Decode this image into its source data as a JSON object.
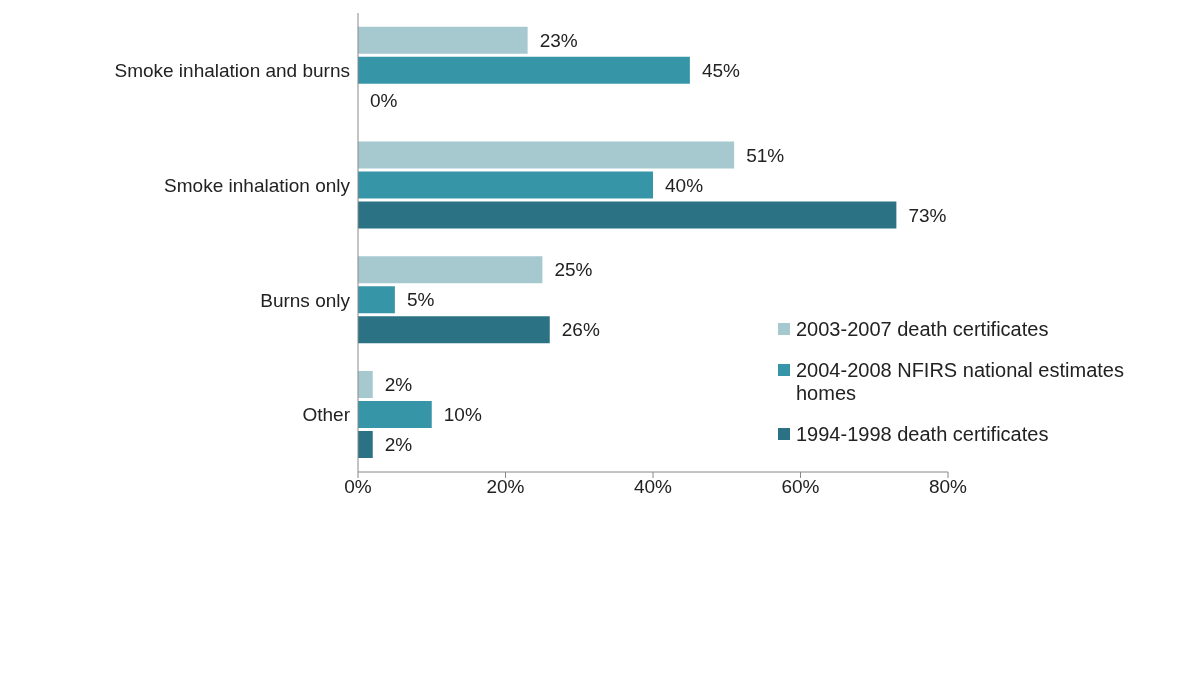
{
  "chart_data": {
    "type": "bar",
    "orientation": "horizontal",
    "categories": [
      "Smoke inhalation and burns",
      "Smoke inhalation only",
      "Burns only",
      "Other"
    ],
    "series": [
      {
        "name": "2003-2007 death certificates",
        "color": "#a6c8cf",
        "values": [
          23,
          51,
          25,
          2
        ],
        "value_labels": [
          "23%",
          "51%",
          "25%",
          "2%"
        ]
      },
      {
        "name": "2004-2008 NFIRS national estimates homes",
        "color": "#3795a8",
        "values": [
          45,
          40,
          5,
          10
        ],
        "value_labels": [
          "45%",
          "40%",
          "5%",
          "10%"
        ]
      },
      {
        "name": "1994-1998 death certificates",
        "color": "#2b7384",
        "values": [
          0,
          73,
          26,
          2
        ],
        "value_labels": [
          "0%",
          "73%",
          "26%",
          "2%"
        ]
      }
    ],
    "xlim": [
      0,
      80
    ],
    "xticks": [
      {
        "value": 0,
        "label": "0%"
      },
      {
        "value": 20,
        "label": "20%"
      },
      {
        "value": 40,
        "label": "40%"
      },
      {
        "value": 60,
        "label": "60%"
      },
      {
        "value": 80,
        "label": "80%"
      }
    ],
    "grid": false,
    "legend": "right"
  }
}
